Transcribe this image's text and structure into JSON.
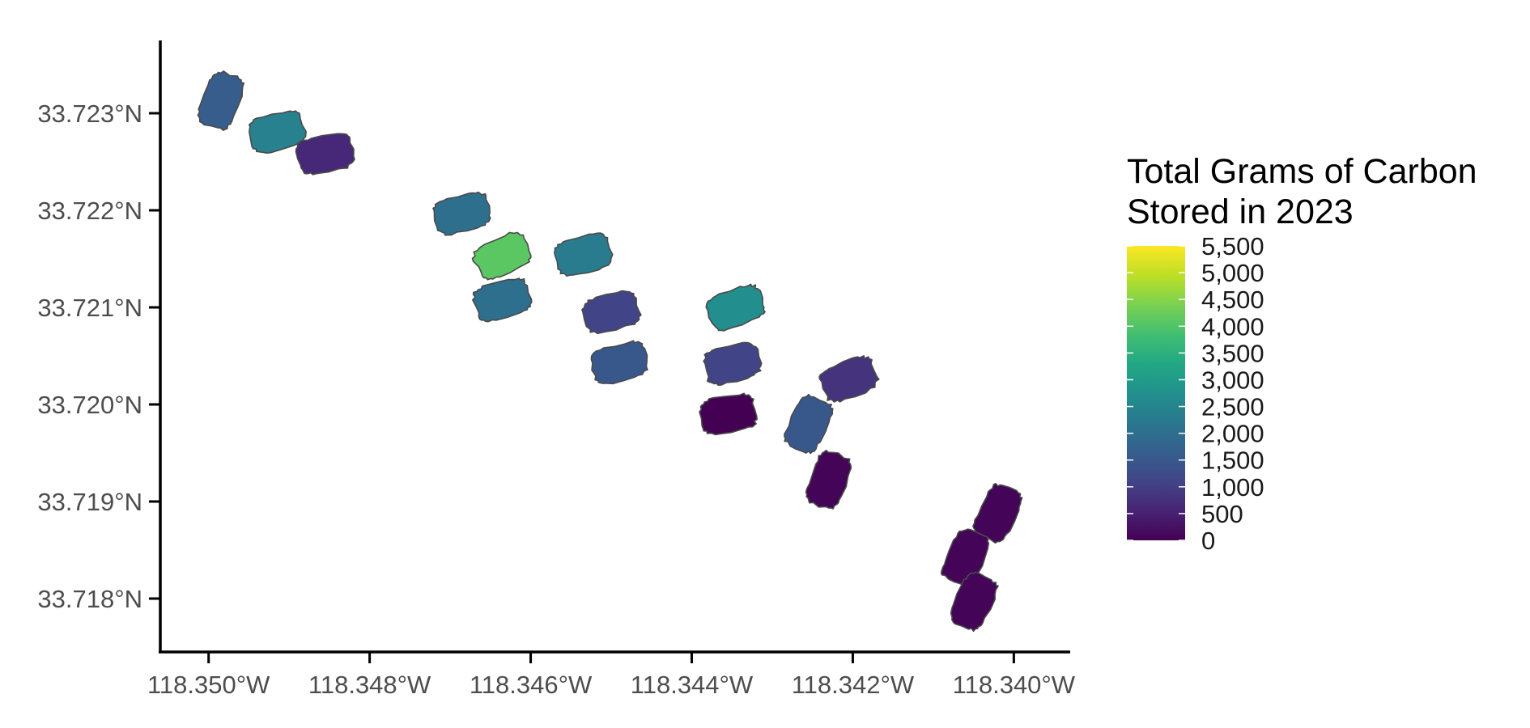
{
  "chart_data": {
    "type": "choropleth",
    "grid": false,
    "legend_position": "right",
    "x_axis": {
      "range_deg_west": [
        118.3506,
        118.3393
      ],
      "ticks": [
        {
          "value": 118.35,
          "label": "118.350°W"
        },
        {
          "value": 118.348,
          "label": "118.348°W"
        },
        {
          "value": 118.346,
          "label": "118.346°W"
        },
        {
          "value": 118.344,
          "label": "118.344°W"
        },
        {
          "value": 118.342,
          "label": "118.342°W"
        },
        {
          "value": 118.34,
          "label": "118.340°W"
        }
      ]
    },
    "y_axis": {
      "range_deg_north": [
        33.71745,
        33.72375
      ],
      "ticks": [
        {
          "value": 33.723,
          "label": "33.723°N"
        },
        {
          "value": 33.722,
          "label": "33.722°N"
        },
        {
          "value": 33.721,
          "label": "33.721°N"
        },
        {
          "value": 33.72,
          "label": "33.720°N"
        },
        {
          "value": 33.719,
          "label": "33.719°N"
        },
        {
          "value": 33.718,
          "label": "33.718°N"
        }
      ]
    },
    "legend": {
      "title_lines": [
        "Total Grams of Carbon",
        "Stored in 2023"
      ],
      "min": 0,
      "max": 5500,
      "ticks": [
        {
          "value": 5500,
          "label": "5,500"
        },
        {
          "value": 5000,
          "label": "5,000"
        },
        {
          "value": 4500,
          "label": "4,500"
        },
        {
          "value": 4000,
          "label": "4,000"
        },
        {
          "value": 3500,
          "label": "3,500"
        },
        {
          "value": 3000,
          "label": "3,000"
        },
        {
          "value": 2500,
          "label": "2,500"
        },
        {
          "value": 2000,
          "label": "2,000"
        },
        {
          "value": 1500,
          "label": "1,500"
        },
        {
          "value": 1000,
          "label": "1,000"
        },
        {
          "value": 500,
          "label": "500"
        },
        {
          "value": 0,
          "label": "0"
        }
      ],
      "colormap": [
        "#440154",
        "#482475",
        "#414487",
        "#355f8d",
        "#2a788e",
        "#21908d",
        "#22a884",
        "#42be71",
        "#7ad151",
        "#bddf26",
        "#fde725"
      ]
    },
    "plots": [
      {
        "lon": -118.34985,
        "lat": 33.72313,
        "angle": -70,
        "value": 1600
      },
      {
        "lon": -118.34915,
        "lat": 33.72281,
        "angle": -15,
        "value": 2400
      },
      {
        "lon": -118.34855,
        "lat": 33.72258,
        "angle": -10,
        "value": 600
      },
      {
        "lon": -118.34685,
        "lat": 33.72197,
        "angle": -15,
        "value": 2000
      },
      {
        "lon": -118.34635,
        "lat": 33.72153,
        "angle": -25,
        "value": 4100
      },
      {
        "lon": -118.34535,
        "lat": 33.72154,
        "angle": -15,
        "value": 2300
      },
      {
        "lon": -118.34635,
        "lat": 33.72108,
        "angle": -15,
        "value": 2000
      },
      {
        "lon": -118.345,
        "lat": 33.72095,
        "angle": -15,
        "value": 1100
      },
      {
        "lon": -118.3449,
        "lat": 33.72043,
        "angle": -15,
        "value": 1500
      },
      {
        "lon": -118.34345,
        "lat": 33.721,
        "angle": -20,
        "value": 2700
      },
      {
        "lon": -118.3435,
        "lat": 33.72042,
        "angle": -15,
        "value": 1100
      },
      {
        "lon": -118.34355,
        "lat": 33.7199,
        "angle": -10,
        "value": 0
      },
      {
        "lon": -118.34205,
        "lat": 33.72026,
        "angle": -20,
        "value": 800
      },
      {
        "lon": -118.34255,
        "lat": 33.7198,
        "angle": -65,
        "value": 1500
      },
      {
        "lon": -118.3423,
        "lat": 33.71922,
        "angle": -70,
        "value": 50
      },
      {
        "lon": -118.3402,
        "lat": 33.71888,
        "angle": -65,
        "value": 50
      },
      {
        "lon": -118.3406,
        "lat": 33.71842,
        "angle": -65,
        "value": 50
      },
      {
        "lon": -118.3405,
        "lat": 33.71797,
        "angle": -65,
        "value": 50
      }
    ]
  }
}
